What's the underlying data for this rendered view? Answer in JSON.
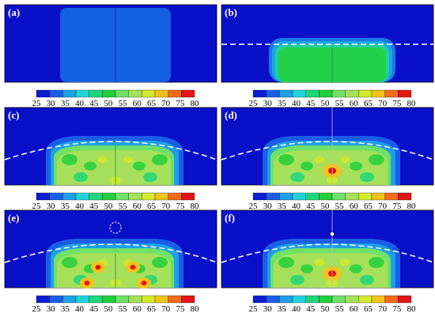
{
  "panels": [
    {
      "label": "(a)"
    },
    {
      "label": "(b)"
    },
    {
      "label": "(c)"
    },
    {
      "label": "(d)"
    },
    {
      "label": "(e)"
    },
    {
      "label": "(f)"
    }
  ],
  "colorbar": {
    "ticks": [
      "25",
      "30",
      "35",
      "40",
      "45",
      "50",
      "55",
      "60",
      "65",
      "70",
      "75",
      "80"
    ],
    "colors": [
      "#0a1fd2",
      "#1a5ee8",
      "#1ea0e6",
      "#21d3d8",
      "#1ed67a",
      "#22cf3a",
      "#6fe068",
      "#a6e05a",
      "#d4ea2c",
      "#f2c21d",
      "#f26a1a",
      "#e21515"
    ]
  },
  "colors": {
    "background_field": "#0a10c8",
    "dashed_line": "#ffffff"
  }
}
